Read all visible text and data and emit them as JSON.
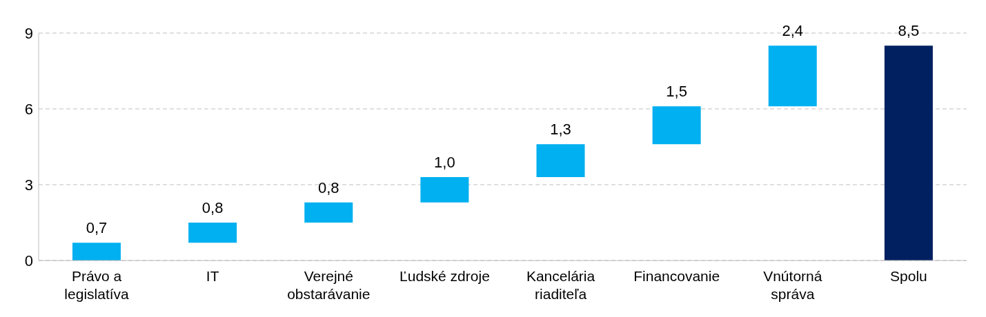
{
  "chart_data": {
    "type": "bar",
    "categories": [
      "Právo a legislatíva",
      "IT",
      "Verejné obstarávanie",
      "Ľudské zdroje",
      "Kancelária riaditeľa",
      "Financovanie",
      "Vnútorná správa",
      "Spolu"
    ],
    "values": [
      0.7,
      0.8,
      0.8,
      1.0,
      1.3,
      1.5,
      2.4,
      8.5
    ],
    "base": [
      0,
      0.7,
      1.5,
      2.3,
      3.3,
      4.6,
      6.1,
      0
    ],
    "colors": [
      "#00b0f0",
      "#00b0f0",
      "#00b0f0",
      "#00b0f0",
      "#00b0f0",
      "#00b0f0",
      "#00b0f0",
      "#002060"
    ],
    "value_labels": [
      "0,7",
      "0,8",
      "0,8",
      "1,0",
      "1,3",
      "1,5",
      "2,4",
      "8,5"
    ],
    "ylim": [
      0,
      9
    ],
    "yticks": [
      0,
      3,
      6,
      9
    ],
    "grid": "y"
  }
}
